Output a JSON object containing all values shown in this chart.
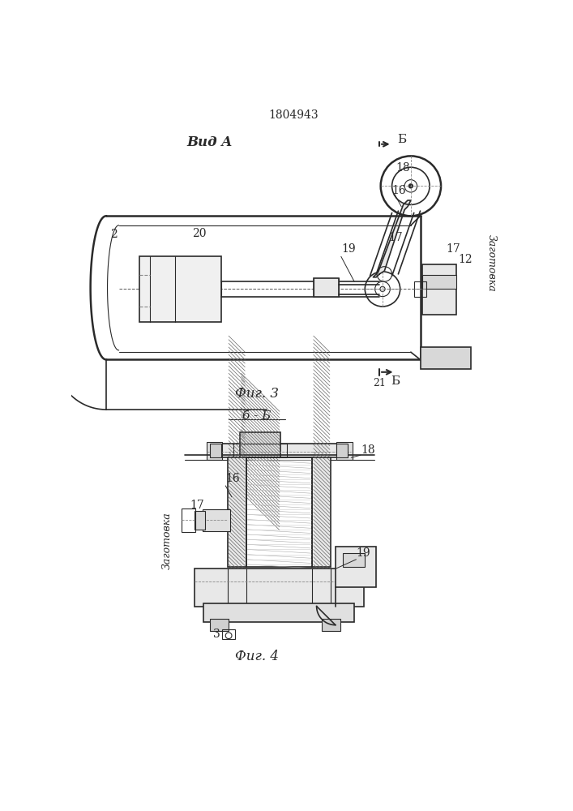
{
  "patent_number": "1804943",
  "fig3_label": "Фиг. 3",
  "fig4_label": "Фиг. 4",
  "view_a_label": "Вид A",
  "section_bb_label": "б - Б",
  "zaготовка_label": "Заготовка",
  "bg_color": "#ffffff",
  "line_color": "#2a2a2a"
}
